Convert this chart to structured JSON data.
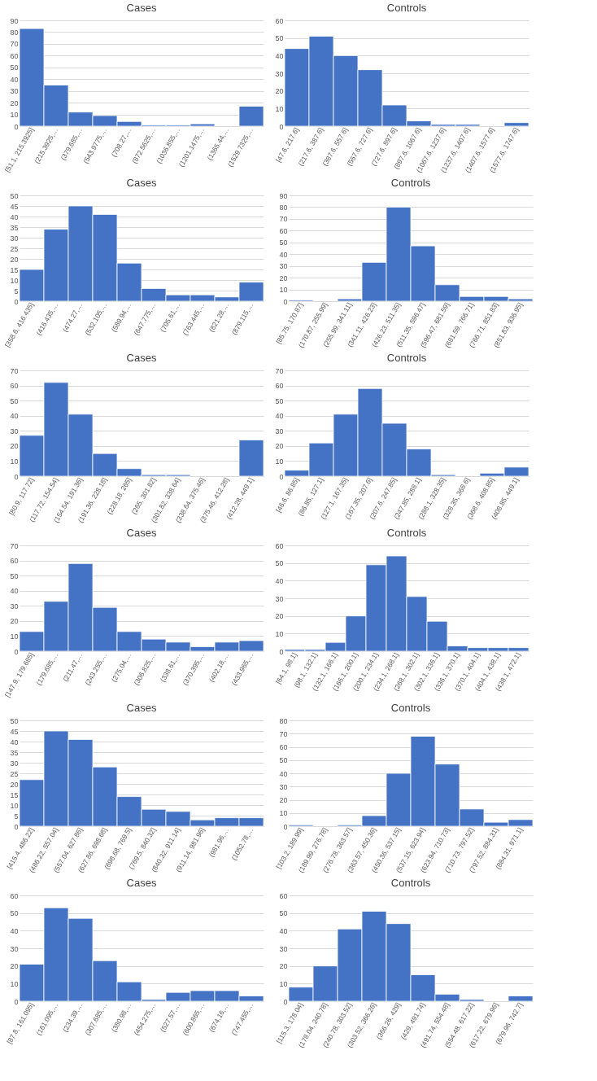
{
  "chart_data": [
    {
      "type": "bar",
      "title": "Cases",
      "categories": [
        "[51.1, 215.3925]",
        "(215.3925,…",
        "(379.685,…",
        "(543.9775,…",
        "(708.27,…",
        "(872.5625,…",
        "(1036.855,…",
        "(1201.1475,…",
        "(1365.44,…",
        "(1529.7325,…"
      ],
      "values": [
        83,
        35,
        12,
        9,
        4,
        1,
        1,
        2,
        0,
        17
      ],
      "color": "#4472c4",
      "ylim": [
        0,
        90
      ],
      "yticks": [
        0,
        10,
        20,
        30,
        40,
        50,
        60,
        70,
        80,
        90
      ],
      "grid": "y"
    },
    {
      "type": "bar",
      "title": "Controls",
      "categories": [
        "[47.6, 217.6]",
        "(217.6, 387.6]",
        "(387.6, 557.6]",
        "(557.6, 727.6]",
        "(727.6, 897.6]",
        "(897.6, 1067.6]",
        "(1067.6, 1237.6]",
        "(1237.6, 1407.6]",
        "(1407.6, 1577.6]",
        "(1577.6, 1747.6]"
      ],
      "values": [
        44,
        51,
        40,
        32,
        12,
        3,
        1,
        1,
        0,
        2
      ],
      "color": "#4472c4",
      "ylim": [
        0,
        60
      ],
      "yticks": [
        0,
        10,
        20,
        30,
        40,
        50,
        60
      ],
      "grid": "y"
    },
    {
      "type": "bar",
      "title": "Cases",
      "categories": [
        "[358.6, 416.435]",
        "(416.435,…",
        "(474.27,…",
        "(532.105,…",
        "(589.94,…",
        "(647.775,…",
        "(705.61,…",
        "(763.445,…",
        "(821.28,…",
        "(879.115,…"
      ],
      "values": [
        15,
        34,
        45,
        41,
        18,
        6,
        3,
        3,
        2,
        9
      ],
      "color": "#4472c4",
      "ylim": [
        0,
        50
      ],
      "yticks": [
        0,
        5,
        10,
        15,
        20,
        25,
        30,
        35,
        40,
        45,
        50
      ],
      "grid": "y"
    },
    {
      "type": "bar",
      "title": "Controls",
      "categories": [
        "[85.75, 170.87]",
        "(170.87, 255.99]",
        "(255.99, 341.11]",
        "(341.11, 426.23]",
        "(426.23, 511.35]",
        "(511.35, 596.47]",
        "(596.47, 681.59]",
        "(681.59, 766.71]",
        "(766.71, 851.83]",
        "(851.83, 936.95]"
      ],
      "values": [
        1,
        0,
        2,
        33,
        80,
        47,
        14,
        4,
        4,
        2
      ],
      "color": "#4472c4",
      "ylim": [
        0,
        90
      ],
      "yticks": [
        0,
        10,
        20,
        30,
        40,
        50,
        60,
        70,
        80,
        90
      ],
      "grid": "y"
    },
    {
      "type": "bar",
      "title": "Cases",
      "categories": [
        "[80.9, 117.72]",
        "(117.72, 154.54]",
        "(154.54, 191.36]",
        "(191.36, 228.18]",
        "(228.18, 265]",
        "(265, 301.82]",
        "(301.82, 338.64]",
        "(338.64, 375.46]",
        "(375.46, 412.28]",
        "(412.28, 449.1]"
      ],
      "values": [
        27,
        62,
        41,
        15,
        5,
        1,
        1,
        0,
        0,
        24
      ],
      "color": "#4472c4",
      "ylim": [
        0,
        70
      ],
      "yticks": [
        0,
        10,
        20,
        30,
        40,
        50,
        60,
        70
      ],
      "grid": "y"
    },
    {
      "type": "bar",
      "title": "Controls",
      "categories": [
        "[46.6, 86.85]",
        "(86.85, 127.1]",
        "(127.1, 167.35]",
        "(167.35, 207.6]",
        "(207.6, 247.85]",
        "(247.85, 288.1]",
        "(288.1, 328.35]",
        "(328.35, 368.6]",
        "(368.6, 408.85]",
        "(408.85, 449.1]"
      ],
      "values": [
        4,
        22,
        41,
        58,
        35,
        18,
        1,
        0,
        2,
        6
      ],
      "color": "#4472c4",
      "ylim": [
        0,
        70
      ],
      "yticks": [
        0,
        10,
        20,
        30,
        40,
        50,
        60,
        70
      ],
      "grid": "y"
    },
    {
      "type": "bar",
      "title": "Cases",
      "categories": [
        "[147.9, 179.685]",
        "(179.685,…",
        "(211.47,…",
        "(243.255,…",
        "(275.04,…",
        "(306.825,…",
        "(338.61,…",
        "(370.395,…",
        "(402.18,…",
        "(433.965,…"
      ],
      "values": [
        13,
        33,
        58,
        29,
        13,
        8,
        6,
        3,
        6,
        7
      ],
      "color": "#4472c4",
      "ylim": [
        0,
        70
      ],
      "yticks": [
        0,
        10,
        20,
        30,
        40,
        50,
        60,
        70
      ],
      "grid": "y"
    },
    {
      "type": "bar",
      "title": "Controls",
      "categories": [
        "[64.1, 98.1]",
        "(98.1, 132.1]",
        "(132.1, 166.1]",
        "(166.1, 200.1]",
        "(200.1, 234.1]",
        "(234.1, 268.1]",
        "(268.1, 302.1]",
        "(302.1, 336.1]",
        "(336.1, 370.1]",
        "(370.1, 404.1]",
        "(404.1, 438.1]",
        "(438.1, 472.1]"
      ],
      "values": [
        1,
        1,
        5,
        20,
        49,
        54,
        31,
        17,
        3,
        2,
        2,
        2
      ],
      "color": "#4472c4",
      "ylim": [
        0,
        60
      ],
      "yticks": [
        0,
        10,
        20,
        30,
        40,
        50,
        60
      ],
      "grid": "y"
    },
    {
      "type": "bar",
      "title": "Cases",
      "categories": [
        "[415.4, 486.22]",
        "(486.22, 557.04]",
        "(557.04, 627.86]",
        "(627.86, 698.68]",
        "(698.68, 769.5]",
        "(769.5, 840.32]",
        "(840.32, 911.14]",
        "(911.14, 981.96]",
        "(981.96,…",
        "(1052.78,…"
      ],
      "values": [
        22,
        45,
        41,
        28,
        14,
        8,
        7,
        3,
        4,
        4
      ],
      "color": "#4472c4",
      "ylim": [
        0,
        50
      ],
      "yticks": [
        0,
        5,
        10,
        15,
        20,
        25,
        30,
        35,
        40,
        45,
        50
      ],
      "grid": "y"
    },
    {
      "type": "bar",
      "title": "Controls",
      "categories": [
        "[103.2, 189.99]",
        "(189.99, 276.78]",
        "(276.78, 363.57]",
        "(363.57, 450.36]",
        "(450.36, 537.15]",
        "(537.15, 623.94]",
        "(623.94, 710.73]",
        "(710.73, 797.52]",
        "(797.52, 884.31]",
        "(884.31, 971.1]"
      ],
      "values": [
        1,
        0,
        1,
        8,
        40,
        68,
        47,
        13,
        3,
        5
      ],
      "color": "#4472c4",
      "ylim": [
        0,
        80
      ],
      "yticks": [
        0,
        10,
        20,
        30,
        40,
        50,
        60,
        70,
        80
      ],
      "grid": "y"
    },
    {
      "type": "bar",
      "title": "Cases",
      "categories": [
        "[87.8, 161.095]",
        "(161.095,…",
        "(234.39,…",
        "(307.685,…",
        "(380.98,…",
        "(454.275,…",
        "(527.57,…",
        "(600.865,…",
        "(674.16,…",
        "(747.455,…"
      ],
      "values": [
        21,
        53,
        47,
        23,
        11,
        1,
        5,
        6,
        6,
        3
      ],
      "color": "#4472c4",
      "ylim": [
        0,
        60
      ],
      "yticks": [
        0,
        10,
        20,
        30,
        40,
        50,
        60
      ],
      "grid": "y"
    },
    {
      "type": "bar",
      "title": "Controls",
      "categories": [
        "[115.3, 178.04]",
        "(178.04, 240.78]",
        "(240.78, 303.52]",
        "(303.52, 366.26]",
        "(366.26, 429]",
        "(429, 491.74]",
        "(491.74, 554.48]",
        "(554.48, 617.22]",
        "(617.22, 679.96]",
        "(679.96, 742.7]"
      ],
      "values": [
        8,
        20,
        41,
        51,
        44,
        15,
        4,
        1,
        0,
        3
      ],
      "color": "#4472c4",
      "ylim": [
        0,
        60
      ],
      "yticks": [
        0,
        10,
        20,
        30,
        40,
        50,
        60
      ],
      "grid": "y"
    }
  ]
}
